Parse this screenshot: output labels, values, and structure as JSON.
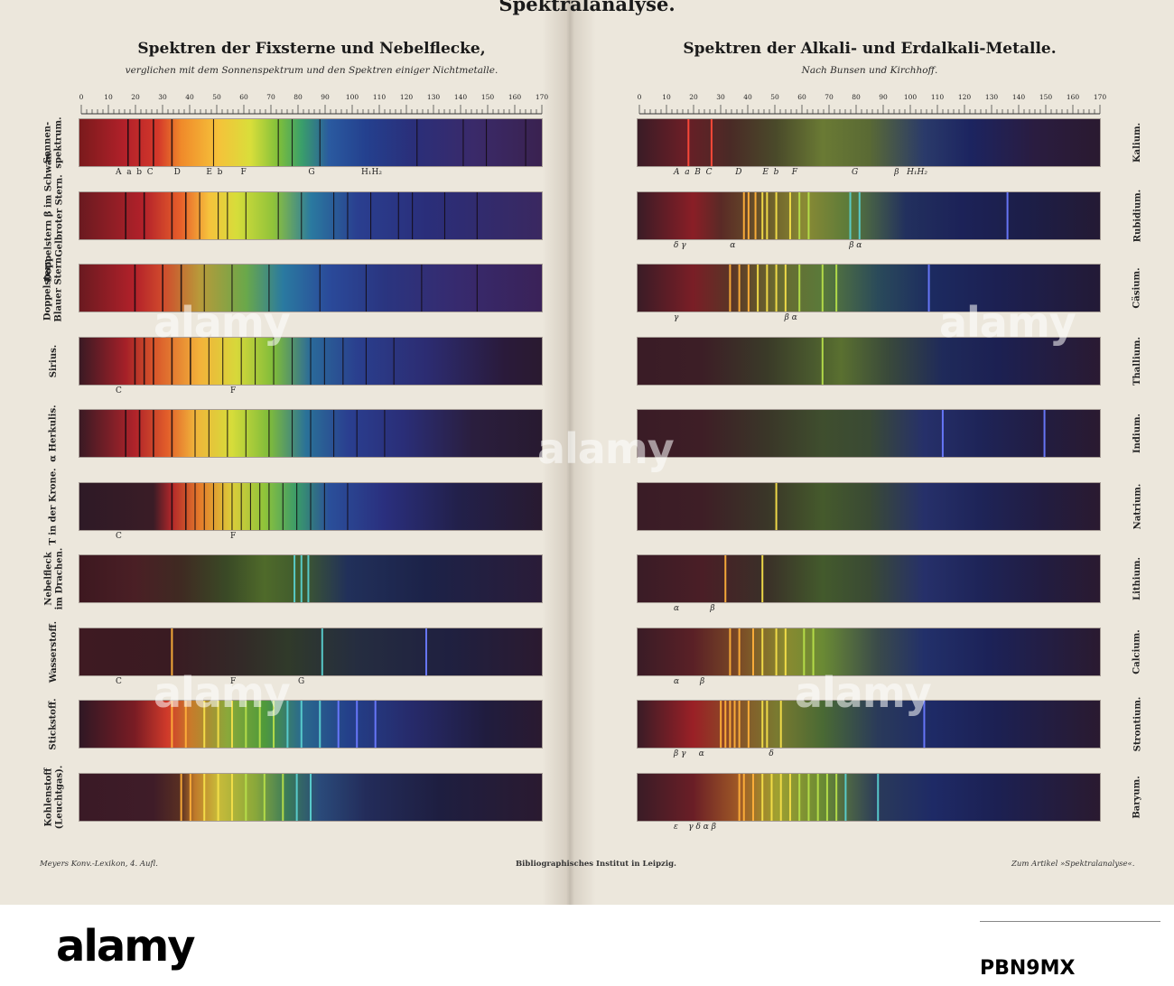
{
  "page_title": "Spektralanalyse.",
  "left": {
    "title": "Spektren der Fixsterne und Nebelflecke,",
    "subtitle": "verglichen mit dem Sonnenspektrum und den Spektren einiger Nichtmetalle.",
    "scale_labels": [
      "0",
      "10",
      "20",
      "30",
      "40",
      "50",
      "60",
      "70",
      "80",
      "90",
      "100",
      "110",
      "120",
      "130",
      "140",
      "150",
      "160",
      "170"
    ],
    "spectra": [
      {
        "label": "Sonnen-\nspektrum.",
        "marks": "A  a  b  C        D          E  b       F                        G                  H₁H₂"
      },
      {
        "label": "Doppelstern β im Schwan.\nGelbroter Stern.",
        "marks": ""
      },
      {
        "label": "Doppelstern.\nBlauer Stern.",
        "marks": ""
      },
      {
        "label": "Sirius.",
        "marks": "C                                          F"
      },
      {
        "label": "α Herkulis.",
        "marks": ""
      },
      {
        "label": "T in der Krone.",
        "marks": "C                                          F"
      },
      {
        "label": "Nebelfleck\nim Drachen.",
        "marks": ""
      },
      {
        "label": "Wasserstoff.",
        "marks": "C                                          F                        G"
      },
      {
        "label": "Stickstoff.",
        "marks": ""
      },
      {
        "label": "Kohlenstoff\n(Leuchtgas).",
        "marks": ""
      }
    ]
  },
  "right": {
    "title": "Spektren der Alkali- und Erdalkali-Metalle.",
    "subtitle": "Nach Bunsen und Kirchhoff.",
    "scale_labels": [
      "0",
      "10",
      "20",
      "30",
      "40",
      "50",
      "60",
      "70",
      "80",
      "90",
      "100",
      "110",
      "120",
      "130",
      "140",
      "150",
      "160",
      "170"
    ],
    "spectra": [
      {
        "label": "Kalium.",
        "marks": "A  a  B  C         D        E  b     F                     G              β   H₁H₂"
      },
      {
        "label": "Rubidium.",
        "marks": "δ γ                 α                                            β α"
      },
      {
        "label": "Cäsium.",
        "marks": "γ                                         β α"
      },
      {
        "label": "Thallium.",
        "marks": ""
      },
      {
        "label": "Indium.",
        "marks": ""
      },
      {
        "label": "Natrium.",
        "marks": ""
      },
      {
        "label": "Lithium.",
        "marks": "α            β"
      },
      {
        "label": "Calcium.",
        "marks": "α        β"
      },
      {
        "label": "Strontium.",
        "marks": "β γ     α                         δ"
      },
      {
        "label": "Baryum.",
        "marks": "ε    γ δ α β"
      }
    ]
  },
  "footer": {
    "left": "Meyers Konv.-Lexikon, 4. Aufl.",
    "center": "Bibliographisches Institut in Leipzig.",
    "right": "Zum Artikel »Spektralanalyse«."
  },
  "watermark": "alamy",
  "image_id": "PBN9MX"
}
